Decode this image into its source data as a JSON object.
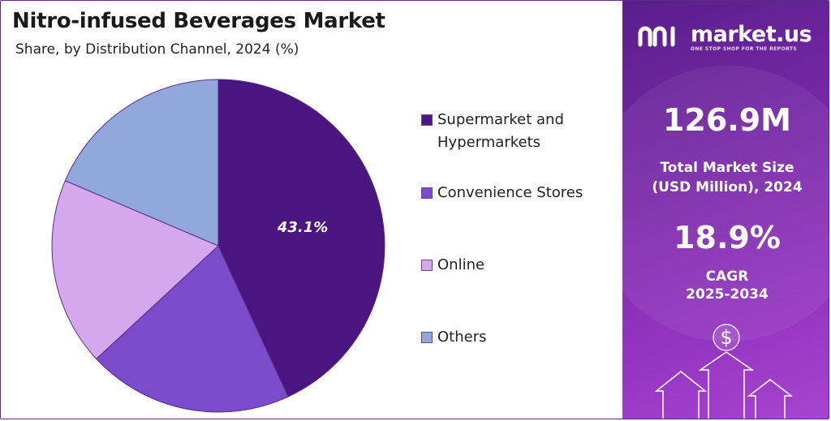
{
  "header": {
    "title": "Nitro-infused Beverages Market",
    "subtitle": "Share, by Distribution Channel, 2024 (%)"
  },
  "chart_data": {
    "type": "pie",
    "title": "Nitro-infused Beverages Market",
    "subtitle": "Share, by Distribution Channel, 2024 (%)",
    "categories": [
      "Supermarket and Hypermarkets",
      "Convenience Stores",
      "Online",
      "Others"
    ],
    "values": [
      43.1,
      20.0,
      18.3,
      18.6
    ],
    "colors": [
      "#4a1580",
      "#7a4ccb",
      "#d4a8ec",
      "#91a8dc"
    ],
    "data_labels": [
      "43.1%",
      "",
      "",
      ""
    ],
    "legend_position": "right"
  },
  "legend": {
    "items": [
      {
        "line1": "Supermarket and",
        "line2": "Hypermarkets",
        "color": "#4a1580"
      },
      {
        "line1": "Convenience Stores",
        "line2": "",
        "color": "#7a4ccb"
      },
      {
        "line1": "Online",
        "line2": "",
        "color": "#d4a8ec"
      },
      {
        "line1": "Others",
        "line2": "",
        "color": "#91a8dc"
      }
    ]
  },
  "sidebar": {
    "brand": "market.us",
    "tagline": "ONE STOP SHOP FOR THE REPORTS",
    "market_size_value": "126.9M",
    "market_size_label_1": "Total Market Size",
    "market_size_label_2": "(USD Million), 2024",
    "cagr_value": "18.9%",
    "cagr_label_1": "CAGR",
    "cagr_label_2": "2025-2034",
    "dollar_icon": "dollar-sign-icon",
    "accent_color": "#7a2aa8"
  }
}
